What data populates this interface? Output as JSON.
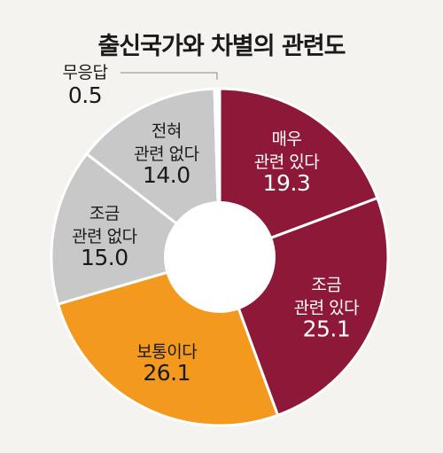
{
  "chart_data": {
    "type": "pie",
    "title": "출신국가와 차별의 관련도",
    "slices": [
      {
        "label_lines": [
          "매우",
          "관련 있다"
        ],
        "value": 19.3,
        "value_text": "19.3",
        "color": "#8e1838",
        "text_color": "#ffffff"
      },
      {
        "label_lines": [
          "조금",
          "관련 있다"
        ],
        "value": 25.1,
        "value_text": "25.1",
        "color": "#8e1838",
        "text_color": "#ffffff"
      },
      {
        "label_lines": [
          "보통이다"
        ],
        "value": 26.1,
        "value_text": "26.1",
        "color": "#f39a1e",
        "text_color": "#1a1a1a"
      },
      {
        "label_lines": [
          "조금",
          "관련 없다"
        ],
        "value": 15.0,
        "value_text": "15.0",
        "color": "#c8c8c8",
        "text_color": "#1a1a1a"
      },
      {
        "label_lines": [
          "전혀",
          "관련 없다"
        ],
        "value": 14.0,
        "value_text": "14.0",
        "color": "#c8c8c8",
        "text_color": "#1a1a1a"
      },
      {
        "label_lines": [
          "무응답"
        ],
        "value": 0.5,
        "value_text": "0.5",
        "color": "#ffffff",
        "text_color": "#1a1a1a",
        "callout": true
      }
    ],
    "start": "top",
    "direction": "clockwise"
  }
}
